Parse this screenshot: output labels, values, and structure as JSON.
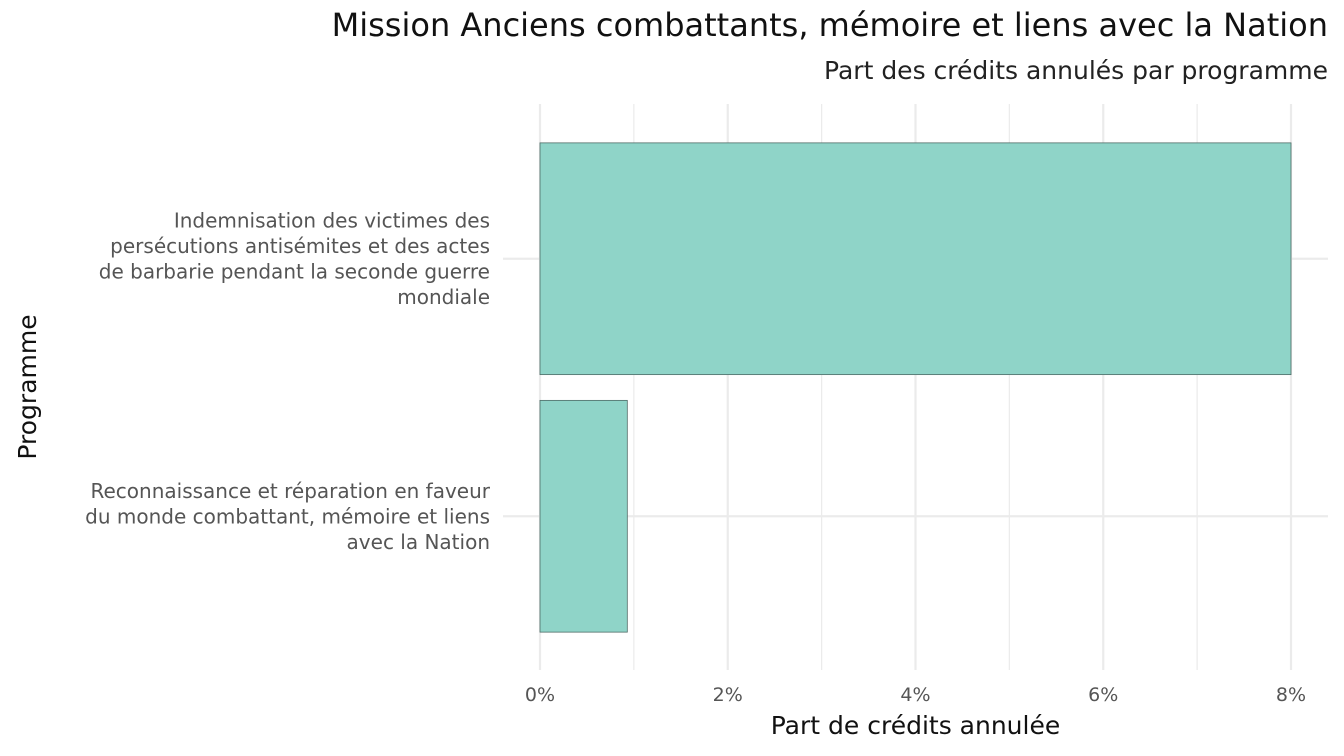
{
  "chart_data": {
    "type": "bar",
    "orientation": "horizontal",
    "title": "Mission Anciens combattants, mémoire et liens avec la Nation",
    "subtitle": "Part des crédits annulés par programme",
    "xlabel": "Part de crédits annulée",
    "ylabel": "Programme",
    "categories": [
      "Indemnisation des victimes des persécutions antisémites et des actes de barbarie pendant la seconde guerre mondiale",
      "Reconnaissance et réparation en faveur du monde combattant, mémoire et liens avec la Nation"
    ],
    "category_lines": [
      [
        "Indemnisation des victimes des",
        "persécutions antisémites et des actes",
        "de barbarie pendant la seconde guerre",
        "mondiale"
      ],
      [
        "Reconnaissance et réparation en faveur",
        "du monde combattant, mémoire et liens",
        "avec la Nation"
      ]
    ],
    "values": [
      8.0,
      0.93
    ],
    "xlim": [
      0,
      8.4
    ],
    "x_ticks": [
      0,
      2,
      4,
      6,
      8
    ],
    "x_tick_labels": [
      "0%",
      "2%",
      "4%",
      "6%",
      "8%"
    ],
    "grid": true,
    "legend": "none",
    "colors": {
      "bar_fill": "#8fd4c8",
      "bar_stroke": "#4d6b66",
      "grid": "#ebebeb"
    }
  }
}
